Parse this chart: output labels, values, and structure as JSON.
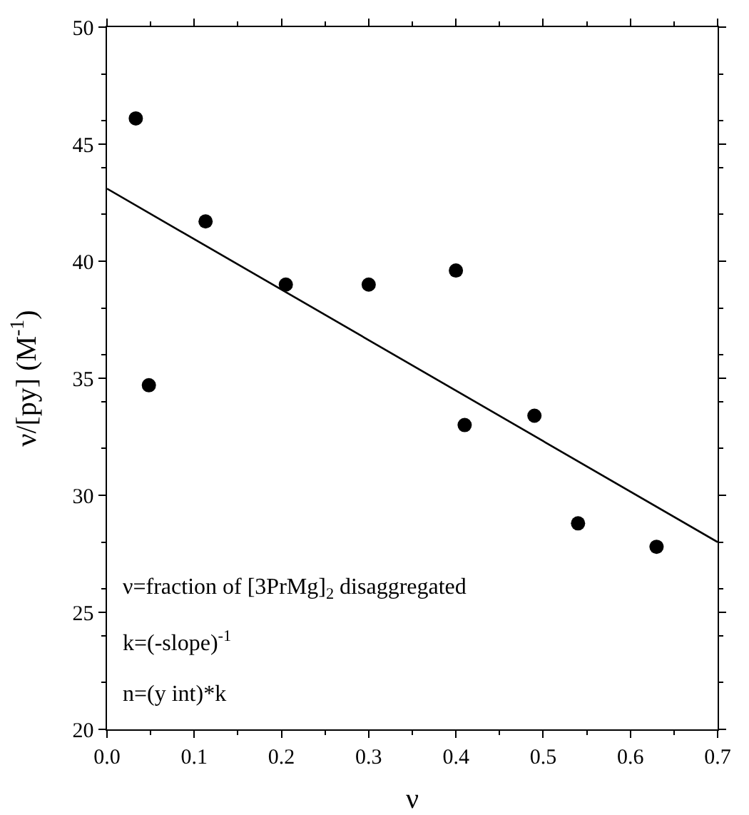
{
  "chart_data": {
    "type": "scatter",
    "xlabel": "ν",
    "ylabel": "ν/[py] (M$^{-1}$)",
    "xlim": [
      0,
      0.7
    ],
    "xticks": [
      {
        "value": 0,
        "label": "0.0"
      },
      0.1,
      0.2,
      0.3,
      0.4,
      0.5,
      0.6,
      0.7
    ],
    "ylim": [
      20,
      50
    ],
    "yticks": [
      20,
      25,
      30,
      35,
      40,
      45,
      50
    ],
    "x": [
      0.033,
      0.048,
      0.113,
      0.205,
      0.3,
      0.4,
      0.41,
      0.49,
      0.54,
      0.63
    ],
    "series": [
      {
        "color": "#000000",
        "marker": "circle",
        "values": [
          46.1,
          34.7,
          41.7,
          39.0,
          39.0,
          39.6,
          33.0,
          33.4,
          28.8,
          27.8
        ]
      },
      {
        "type": "line",
        "color": "#000000",
        "marker": "none",
        "line_style": "solid",
        "x": [
          0,
          0.7
        ],
        "values": [
          43.1,
          28.0
        ]
      }
    ],
    "annotations": [
      "ν=fraction of [3PrMg]$_{2}$ disaggregated",
      "k=(-slope)$^{-1}$",
      "n=(y int)*k"
    ],
    "grid": false
  }
}
